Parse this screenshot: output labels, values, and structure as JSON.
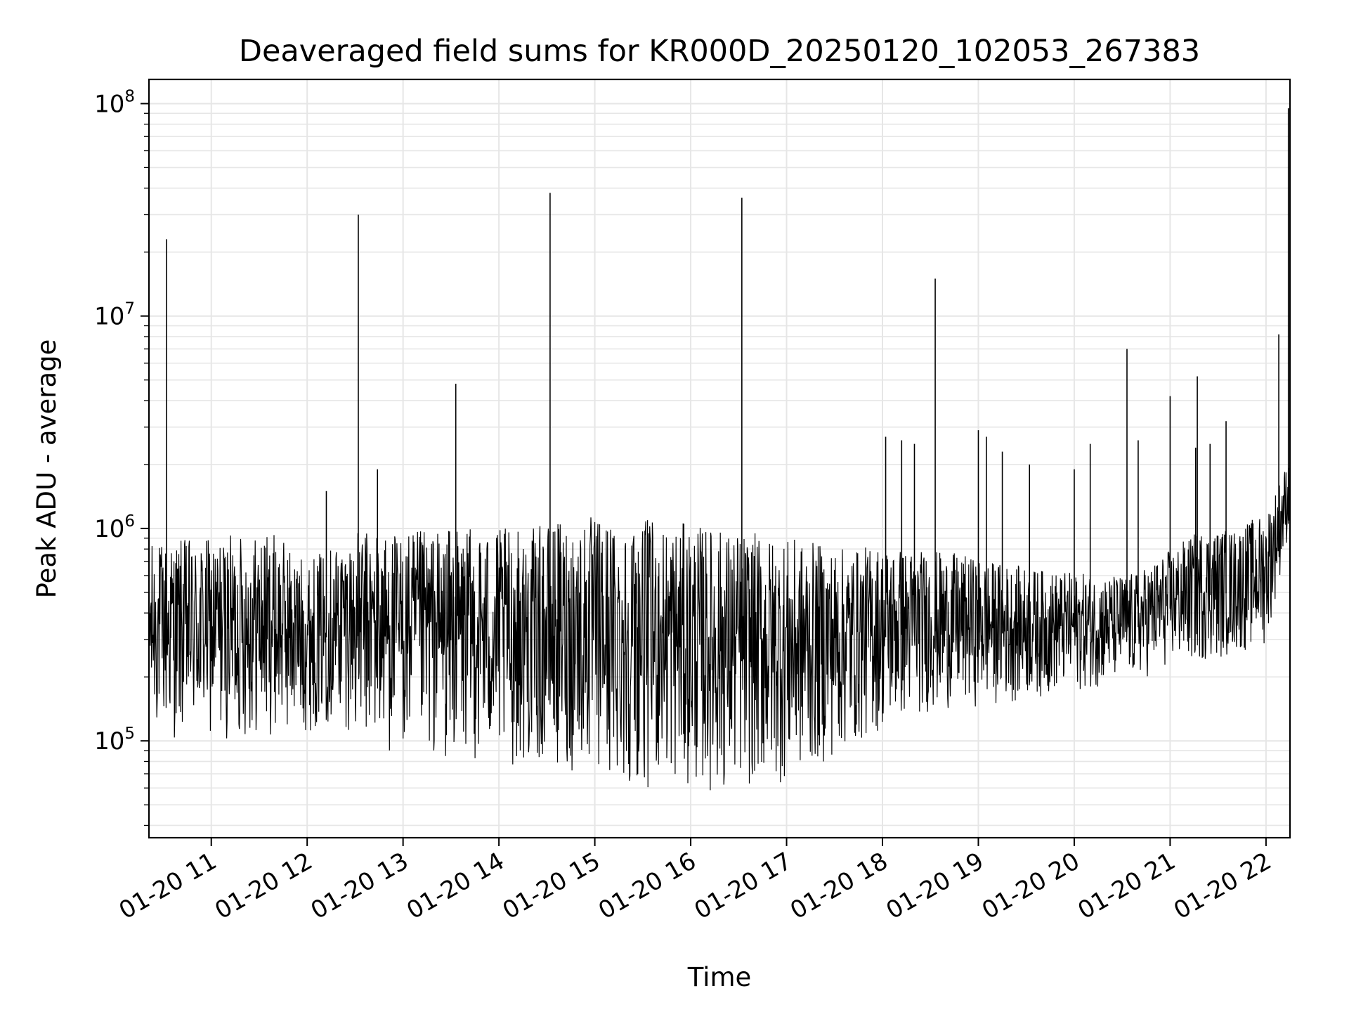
{
  "chart_data": {
    "type": "line",
    "title": "Deaveraged field sums for KR000D_20250120_102053_267383",
    "xlabel": "Time",
    "ylabel": "Peak ADU - average",
    "x_ticks": [
      "01-20 11",
      "01-20 12",
      "01-20 13",
      "01-20 14",
      "01-20 15",
      "01-20 16",
      "01-20 17",
      "01-20 18",
      "01-20 19",
      "01-20 20",
      "01-20 21",
      "01-20 22"
    ],
    "y_ticks": [
      {
        "base": "10",
        "exp": "5",
        "value": 100000
      },
      {
        "base": "10",
        "exp": "6",
        "value": 1000000
      },
      {
        "base": "10",
        "exp": "7",
        "value": 10000000
      },
      {
        "base": "10",
        "exp": "8",
        "value": 100000000
      }
    ],
    "xlim": [
      "2025-01-20 10:21",
      "2025-01-20 22:15"
    ],
    "ylim": [
      35000,
      130000000
    ],
    "yscale": "log",
    "grid": true,
    "line_color": "#000000",
    "grid_color": "#e6e6e6",
    "series": [
      {
        "x": [
          "2025-01-20 10:21",
          "2025-01-20 10:40",
          "2025-01-20 11:00",
          "2025-01-20 11:20",
          "2025-01-20 11:40",
          "2025-01-20 12:00",
          "2025-01-20 12:20",
          "2025-01-20 12:40",
          "2025-01-20 13:00",
          "2025-01-20 13:20",
          "2025-01-20 13:40",
          "2025-01-20 14:00",
          "2025-01-20 14:20",
          "2025-01-20 14:40",
          "2025-01-20 15:00",
          "2025-01-20 15:20",
          "2025-01-20 15:40",
          "2025-01-20 16:00",
          "2025-01-20 16:20",
          "2025-01-20 16:40",
          "2025-01-20 17:00",
          "2025-01-20 17:20",
          "2025-01-20 17:40",
          "2025-01-20 18:00",
          "2025-01-20 18:20",
          "2025-01-20 18:40",
          "2025-01-20 19:00",
          "2025-01-20 19:20",
          "2025-01-20 19:40",
          "2025-01-20 20:00",
          "2025-01-20 20:20",
          "2025-01-20 20:40",
          "2025-01-20 21:00",
          "2025-01-20 21:20",
          "2025-01-20 21:40",
          "2025-01-20 22:00",
          "2025-01-20 22:15"
        ],
        "low": [
          110000,
          100000,
          100000,
          100000,
          105000,
          110000,
          120000,
          90000,
          85000,
          80000,
          80000,
          75000,
          75000,
          70000,
          65000,
          60000,
          60000,
          60000,
          55000,
          60000,
          62000,
          75000,
          90000,
          110000,
          130000,
          140000,
          145000,
          150000,
          160000,
          170000,
          180000,
          190000,
          220000,
          230000,
          250000,
          280000,
          1000000
        ],
        "high": [
          850000,
          900000,
          900000,
          950000,
          950000,
          700000,
          900000,
          1000000,
          950000,
          1000000,
          1000000,
          1000000,
          1000000,
          1100000,
          1150000,
          1100000,
          1100000,
          1050000,
          1000000,
          950000,
          900000,
          850000,
          800000,
          850000,
          800000,
          780000,
          720000,
          680000,
          640000,
          620000,
          600000,
          620000,
          800000,
          1000000,
          1000000,
          1200000,
          2200000
        ],
        "peaks": [
          {
            "x": "2025-01-20 10:32",
            "value": 23000000
          },
          {
            "x": "2025-01-20 12:12",
            "value": 1500000
          },
          {
            "x": "2025-01-20 12:32",
            "value": 30000000
          },
          {
            "x": "2025-01-20 12:44",
            "value": 1900000
          },
          {
            "x": "2025-01-20 13:33",
            "value": 4800000
          },
          {
            "x": "2025-01-20 14:32",
            "value": 38000000
          },
          {
            "x": "2025-01-20 16:32",
            "value": 36000000
          },
          {
            "x": "2025-01-20 18:02",
            "value": 2700000
          },
          {
            "x": "2025-01-20 18:12",
            "value": 2600000
          },
          {
            "x": "2025-01-20 18:20",
            "value": 2500000
          },
          {
            "x": "2025-01-20 18:33",
            "value": 15000000
          },
          {
            "x": "2025-01-20 19:00",
            "value": 2900000
          },
          {
            "x": "2025-01-20 19:05",
            "value": 2700000
          },
          {
            "x": "2025-01-20 19:15",
            "value": 2300000
          },
          {
            "x": "2025-01-20 19:32",
            "value": 2000000
          },
          {
            "x": "2025-01-20 20:00",
            "value": 1900000
          },
          {
            "x": "2025-01-20 20:10",
            "value": 2500000
          },
          {
            "x": "2025-01-20 20:33",
            "value": 7000000
          },
          {
            "x": "2025-01-20 20:40",
            "value": 2600000
          },
          {
            "x": "2025-01-20 21:00",
            "value": 4200000
          },
          {
            "x": "2025-01-20 21:16",
            "value": 2400000
          },
          {
            "x": "2025-01-20 21:17",
            "value": 5200000
          },
          {
            "x": "2025-01-20 21:25",
            "value": 2500000
          },
          {
            "x": "2025-01-20 21:35",
            "value": 3200000
          },
          {
            "x": "2025-01-20 22:08",
            "value": 8200000
          },
          {
            "x": "2025-01-20 22:14",
            "value": 95000000
          }
        ]
      }
    ]
  }
}
